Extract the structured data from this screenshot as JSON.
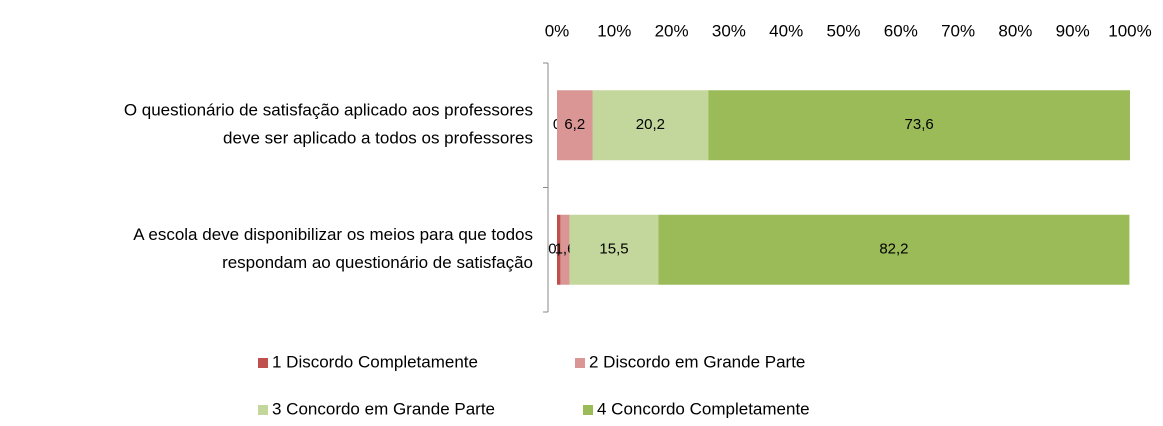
{
  "chart_data": {
    "type": "stacked_bar_horizontal",
    "categories": [
      "O questionário de satisfação aplicado aos professores\ndeve ser aplicado a todos os professores",
      "A escola deve disponibilizar os meios para que todos\nrespondam ao questionário de satisfação"
    ],
    "series": [
      {
        "name": "1 Discordo Completamente",
        "color": "#c0504d",
        "values": [
          0,
          0.6
        ],
        "value_labels": [
          "0",
          "0,6"
        ]
      },
      {
        "name": "2 Discordo em Grande Parte",
        "color": "#d99694",
        "values": [
          6.2,
          1.6
        ],
        "value_labels": [
          "6,2",
          "1,6"
        ]
      },
      {
        "name": "3 Concordo em Grande Parte",
        "color": "#c3d69b",
        "values": [
          20.2,
          15.5
        ],
        "value_labels": [
          "20,2",
          "15,5"
        ]
      },
      {
        "name": "4 Concordo Completamente",
        "color": "#9bbb59",
        "values": [
          73.6,
          82.2
        ],
        "value_labels": [
          "73,6",
          "82,2"
        ]
      }
    ],
    "xlim": [
      0,
      100
    ],
    "xticks": [
      {
        "value": 0,
        "label": "0%"
      },
      {
        "value": 10,
        "label": "10%"
      },
      {
        "value": 20,
        "label": "20%"
      },
      {
        "value": 30,
        "label": "30%"
      },
      {
        "value": 40,
        "label": "40%"
      },
      {
        "value": 50,
        "label": "50%"
      },
      {
        "value": 60,
        "label": "60%"
      },
      {
        "value": 70,
        "label": "70%"
      },
      {
        "value": 80,
        "label": "80%"
      },
      {
        "value": 90,
        "label": "90%"
      },
      {
        "value": 100,
        "label": "100%"
      }
    ],
    "legend": "bottom"
  }
}
